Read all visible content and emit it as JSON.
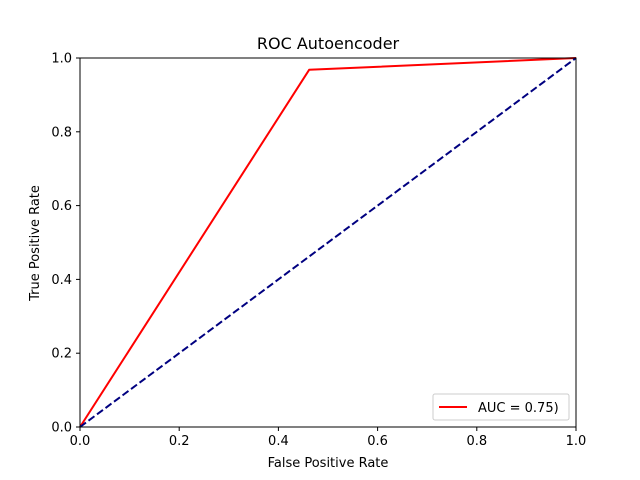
{
  "chart_data": {
    "type": "line",
    "title": "ROC Autoencoder",
    "xlabel": "False Positive Rate",
    "ylabel": "True Positive Rate",
    "xlim": [
      0.0,
      1.0
    ],
    "ylim": [
      0.0,
      1.0
    ],
    "xticks": [
      "0.0",
      "0.2",
      "0.4",
      "0.6",
      "0.8",
      "1.0"
    ],
    "yticks": [
      "0.0",
      "0.2",
      "0.4",
      "0.6",
      "0.8",
      "1.0"
    ],
    "grid": false,
    "legend_position": "lower-right",
    "series": [
      {
        "name": "AUC = 0.75)",
        "color": "#ff0000",
        "style": "solid",
        "x": [
          0.0,
          0.462,
          1.0
        ],
        "y": [
          0.0,
          0.968,
          1.0
        ]
      },
      {
        "color": "#000080",
        "style": "dashed",
        "x": [
          0.0,
          1.0
        ],
        "y": [
          0.0,
          1.0
        ]
      }
    ]
  }
}
